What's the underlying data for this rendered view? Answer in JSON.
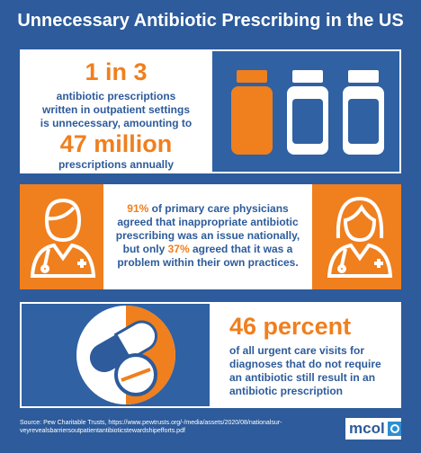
{
  "title": "Unnecessary Antibiotic Prescribing in the US",
  "panel1": {
    "headline": "1 in 3",
    "lines": [
      "antibiotic prescriptions",
      "written in outpatient settings",
      "is unnecessary, amounting to"
    ],
    "highlight": "47 million",
    "tail": "prescriptions annually"
  },
  "panel2": {
    "parts": [
      "91%",
      " of primary care physicians agreed that inappropriate antibiotic prescribing was an issue nationally, but only ",
      "37%",
      " agreed that it was a problem within their own practices."
    ]
  },
  "panel3": {
    "headline": "46 percent",
    "lines": [
      "of all urgent care visits for",
      "diagnoses that do not require",
      "an antibiotic still result in an",
      "antibiotic prescription"
    ]
  },
  "footer": {
    "source": [
      "Source: Pew Charitable Trusts, https://www.pewtrusts.org/-/media/assets/2020/08/nationalsur-",
      "veyrevealsbarriersoutpatientantibioticstewardshipefforts.pdf"
    ],
    "logo": "mcol"
  }
}
